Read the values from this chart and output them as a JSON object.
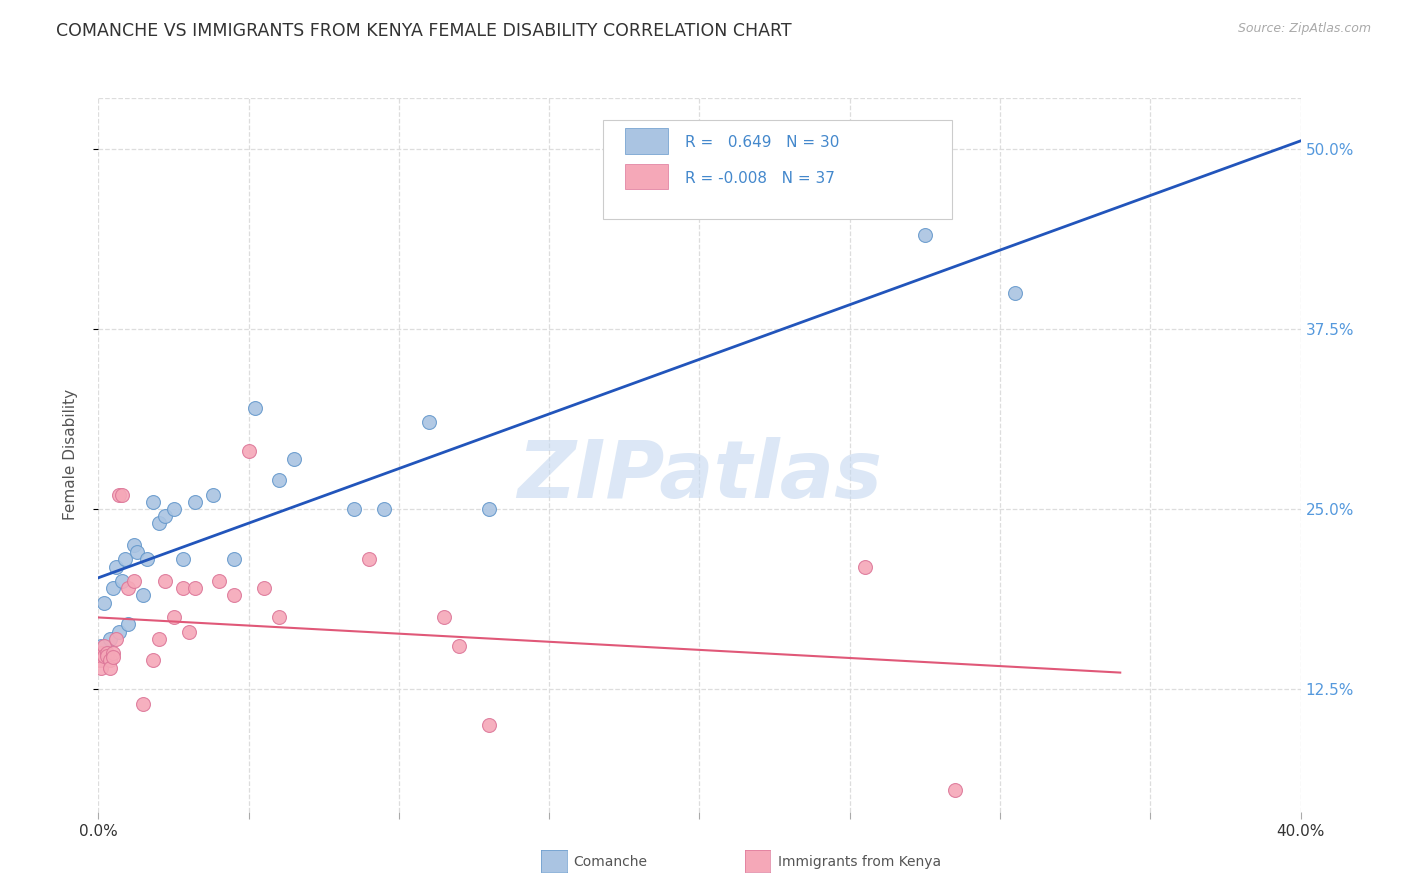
{
  "title": "COMANCHE VS IMMIGRANTS FROM KENYA FEMALE DISABILITY CORRELATION CHART",
  "source": "Source: ZipAtlas.com",
  "ylabel": "Female Disability",
  "ylabel_right_vals": [
    0.5,
    0.375,
    0.25,
    0.125
  ],
  "ylabel_right_labels": [
    "50.0%",
    "37.5%",
    "25.0%",
    "12.5%"
  ],
  "x_min": 0.0,
  "x_max": 0.4,
  "y_min": 0.04,
  "y_max": 0.535,
  "comanche_R": 0.649,
  "comanche_N": 30,
  "kenya_R": -0.008,
  "kenya_N": 37,
  "comanche_color": "#aac4e2",
  "kenya_color": "#f5a8b8",
  "comanche_edge_color": "#6699cc",
  "kenya_edge_color": "#dd7799",
  "comanche_line_color": "#2255bb",
  "kenya_line_color": "#e05878",
  "comanche_points_x": [
    0.001,
    0.002,
    0.004,
    0.005,
    0.006,
    0.007,
    0.008,
    0.009,
    0.01,
    0.012,
    0.013,
    0.015,
    0.016,
    0.018,
    0.02,
    0.022,
    0.025,
    0.028,
    0.032,
    0.038,
    0.045,
    0.052,
    0.06,
    0.065,
    0.085,
    0.095,
    0.11,
    0.13,
    0.275,
    0.305
  ],
  "comanche_points_y": [
    0.155,
    0.185,
    0.16,
    0.195,
    0.21,
    0.165,
    0.2,
    0.215,
    0.17,
    0.225,
    0.22,
    0.19,
    0.215,
    0.255,
    0.24,
    0.245,
    0.25,
    0.215,
    0.255,
    0.26,
    0.215,
    0.32,
    0.27,
    0.285,
    0.25,
    0.25,
    0.31,
    0.25,
    0.44,
    0.4
  ],
  "kenya_points_x": [
    0.0,
    0.0,
    0.001,
    0.001,
    0.001,
    0.002,
    0.002,
    0.003,
    0.003,
    0.004,
    0.004,
    0.005,
    0.005,
    0.006,
    0.007,
    0.008,
    0.01,
    0.012,
    0.015,
    0.018,
    0.02,
    0.022,
    0.025,
    0.028,
    0.03,
    0.032,
    0.04,
    0.045,
    0.05,
    0.055,
    0.06,
    0.09,
    0.115,
    0.12,
    0.13,
    0.255,
    0.285
  ],
  "kenya_points_y": [
    0.145,
    0.148,
    0.15,
    0.145,
    0.14,
    0.155,
    0.148,
    0.15,
    0.148,
    0.145,
    0.14,
    0.15,
    0.147,
    0.16,
    0.26,
    0.26,
    0.195,
    0.2,
    0.115,
    0.145,
    0.16,
    0.2,
    0.175,
    0.195,
    0.165,
    0.195,
    0.2,
    0.19,
    0.29,
    0.195,
    0.175,
    0.215,
    0.175,
    0.155,
    0.1,
    0.21,
    0.055
  ],
  "watermark": "ZIPatlas",
  "background_color": "#ffffff",
  "grid_color": "#dddddd",
  "right_tick_color": "#5599dd"
}
